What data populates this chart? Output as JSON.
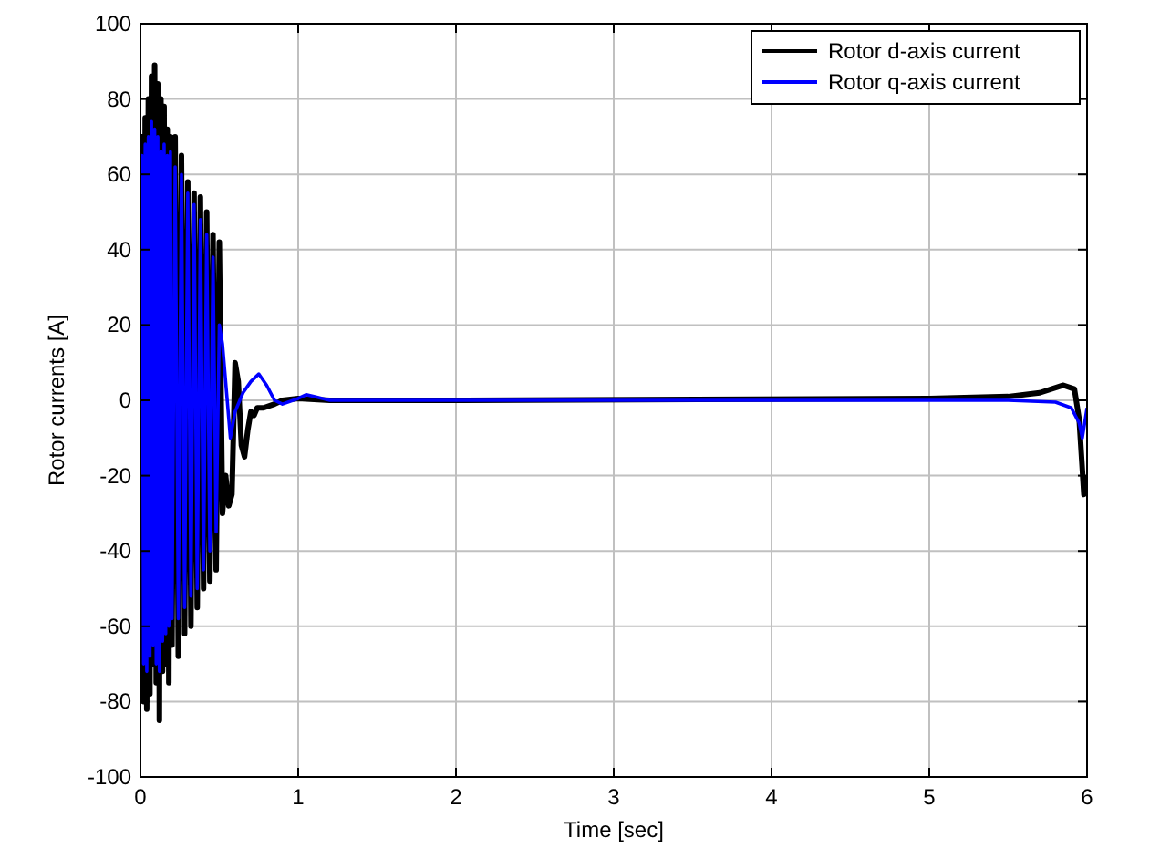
{
  "chart_data": {
    "type": "line",
    "xlabel": "Time [sec]",
    "ylabel": "Rotor currents [A]",
    "xlim": [
      0,
      6
    ],
    "ylim": [
      -100,
      100
    ],
    "xticks": [
      0,
      1,
      2,
      3,
      4,
      5,
      6
    ],
    "yticks": [
      -100,
      -80,
      -60,
      -40,
      -20,
      0,
      20,
      40,
      60,
      80,
      100
    ],
    "grid": true,
    "legend": "top right",
    "line_style": "solid",
    "series": [
      {
        "name": "Rotor d-axis current",
        "color": "#000000",
        "x": [
          0,
          0.01,
          0.02,
          0.03,
          0.04,
          0.05,
          0.06,
          0.07,
          0.08,
          0.09,
          0.1,
          0.11,
          0.12,
          0.13,
          0.14,
          0.15,
          0.16,
          0.17,
          0.18,
          0.19,
          0.2,
          0.22,
          0.24,
          0.26,
          0.28,
          0.3,
          0.32,
          0.34,
          0.36,
          0.38,
          0.4,
          0.42,
          0.44,
          0.46,
          0.48,
          0.5,
          0.52,
          0.54,
          0.56,
          0.58,
          0.6,
          0.62,
          0.64,
          0.66,
          0.68,
          0.7,
          0.72,
          0.74,
          0.78,
          0.85,
          0.9,
          1,
          1.2,
          2,
          5,
          5.5,
          5.7,
          5.85,
          5.92,
          5.95,
          5.98,
          6
        ],
        "values": [
          0,
          70,
          -80,
          75,
          -82,
          80,
          -78,
          86,
          -70,
          89,
          -75,
          84,
          -85,
          80,
          -72,
          78,
          -70,
          72,
          -75,
          70,
          -65,
          70,
          -68,
          65,
          -62,
          58,
          -60,
          55,
          -55,
          54,
          -50,
          50,
          -48,
          44,
          -45,
          42,
          -30,
          -20,
          -28,
          -25,
          10,
          5,
          -12,
          -15,
          -8,
          -3,
          -4,
          -2,
          -2,
          -1,
          0,
          0.5,
          0,
          0,
          0.5,
          1,
          2,
          4,
          3,
          -5,
          -25,
          -20
        ]
      },
      {
        "name": "Rotor q-axis current",
        "color": "#0000ff",
        "x": [
          0,
          0.01,
          0.02,
          0.03,
          0.04,
          0.05,
          0.06,
          0.07,
          0.08,
          0.09,
          0.1,
          0.11,
          0.12,
          0.13,
          0.14,
          0.15,
          0.16,
          0.17,
          0.18,
          0.19,
          0.2,
          0.22,
          0.24,
          0.26,
          0.28,
          0.3,
          0.32,
          0.34,
          0.36,
          0.38,
          0.4,
          0.42,
          0.44,
          0.46,
          0.48,
          0.5,
          0.52,
          0.55,
          0.57,
          0.6,
          0.65,
          0.7,
          0.75,
          0.8,
          0.85,
          0.9,
          1,
          1.05,
          1.1,
          1.2,
          2,
          5,
          5.5,
          5.8,
          5.9,
          5.95,
          5.97,
          6
        ],
        "values": [
          0,
          65,
          -70,
          68,
          -72,
          70,
          -68,
          74,
          -65,
          72,
          -70,
          70,
          -72,
          66,
          -64,
          68,
          -62,
          65,
          -60,
          66,
          -58,
          62,
          -58,
          60,
          -55,
          55,
          -52,
          52,
          -50,
          48,
          -45,
          44,
          -40,
          38,
          -35,
          20,
          15,
          0,
          -10,
          -3,
          2,
          5,
          7,
          4,
          0,
          -1,
          0.5,
          1.5,
          1,
          0,
          0,
          0,
          0,
          -0.5,
          -2,
          -6,
          -10,
          -2
        ]
      }
    ]
  }
}
